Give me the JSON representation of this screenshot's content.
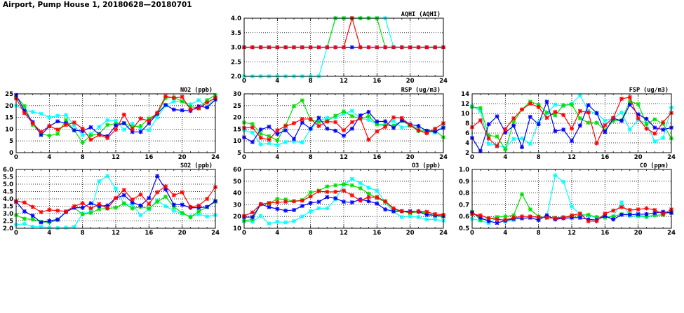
{
  "title": "Airport, Pump House 1, 20180628—20180701",
  "chart_data": {
    "type": "line",
    "x": [
      0,
      1,
      2,
      3,
      4,
      5,
      6,
      7,
      8,
      9,
      10,
      11,
      12,
      13,
      14,
      15,
      16,
      17,
      18,
      19,
      20,
      21,
      22,
      23,
      24
    ],
    "xlim": [
      0,
      24
    ],
    "xticks": [
      0,
      4,
      8,
      12,
      16,
      20,
      24
    ],
    "grid": true,
    "series_colors": [
      "#00ffff",
      "#00e000",
      "#0000ff",
      "#ff0000"
    ],
    "panels": [
      {
        "id": "aqhi",
        "title": "AQHI (AQHI)",
        "ylim": [
          2,
          4
        ],
        "yticks": [
          "2.0",
          "2.5",
          "3.0",
          "3.5",
          "4.0"
        ],
        "series": [
          {
            "color": "#00ffff",
            "values": [
              2,
              2,
              2,
              2,
              2,
              2,
              2,
              2,
              2,
              2,
              3,
              4,
              4,
              4,
              4,
              4,
              4,
              4,
              3,
              3,
              3,
              3,
              3,
              3,
              3
            ]
          },
          {
            "color": "#00e000",
            "values": [
              3,
              3,
              3,
              3,
              3,
              3,
              3,
              3,
              3,
              3,
              3,
              4,
              4,
              4,
              4,
              4,
              4,
              3,
              3,
              3,
              3,
              3,
              3,
              3,
              3
            ]
          },
          {
            "color": "#0000ff",
            "values": [
              3,
              3,
              3,
              3,
              3,
              3,
              3,
              3,
              3,
              3,
              3,
              3,
              3,
              3,
              3,
              3,
              3,
              3,
              3,
              3,
              3,
              3,
              3,
              3,
              3
            ]
          },
          {
            "color": "#ff0000",
            "values": [
              3,
              3,
              3,
              3,
              3,
              3,
              3,
              3,
              3,
              3,
              3,
              3,
              3,
              4,
              3,
              3,
              3,
              3,
              3,
              3,
              3,
              3,
              3,
              3,
              3
            ]
          }
        ]
      },
      {
        "id": "no2",
        "title": "NO2 (ppb)",
        "ylim": [
          0,
          25
        ],
        "yticks": [
          "0",
          "5",
          "10",
          "15",
          "20",
          "25"
        ],
        "series": [
          {
            "color": "#00ffff",
            "values": [
              20,
              18,
              17.3,
              16.5,
              15,
              15.7,
              16,
              11.5,
              7.5,
              8,
              11,
              13.8,
              13.5,
              9.8,
              12.3,
              10,
              9.5,
              15,
              20,
              21.8,
              21.8,
              20.5,
              22.3,
              19.5,
              23.5
            ]
          },
          {
            "color": "#00e000",
            "values": [
              24,
              19.8,
              11.8,
              8,
              7.2,
              8,
              13.8,
              9.5,
              4.3,
              7.3,
              8,
              11.8,
              12.3,
              12.5,
              11,
              11.3,
              14.5,
              16.5,
              23.2,
              23.5,
              21.8,
              19.5,
              19,
              22.3,
              24.5
            ]
          },
          {
            "color": "#0000ff",
            "values": [
              24.5,
              17.8,
              13,
              7.5,
              11.2,
              13.3,
              12.5,
              9.5,
              9.2,
              10.8,
              7.8,
              7,
              11.5,
              12.5,
              8.8,
              8.8,
              12.5,
              16.5,
              20.3,
              18.3,
              18,
              17.8,
              19.7,
              19.2,
              22.5
            ]
          },
          {
            "color": "#ff0000",
            "values": [
              23,
              16.8,
              12.5,
              8.8,
              11.3,
              9.8,
              11.8,
              12.8,
              10.2,
              5.5,
              7.5,
              6.2,
              9.8,
              16.2,
              10,
              14.5,
              13.5,
              17,
              24,
              23.2,
              23.7,
              18.3,
              18.8,
              21.3,
              23.3
            ]
          }
        ]
      },
      {
        "id": "rsp",
        "title": "RSP (ug/m3)",
        "ylim": [
          5,
          30
        ],
        "yticks": [
          "5",
          "10",
          "15",
          "20",
          "25",
          "30"
        ],
        "series": [
          {
            "color": "#00ffff",
            "values": [
              14.5,
              13.5,
              8.5,
              9,
              8.2,
              9.5,
              9.7,
              9.3,
              15,
              18.5,
              19.8,
              20,
              21.5,
              22.8,
              19.5,
              19,
              17,
              17,
              18.5,
              15.7,
              16.5,
              15.5,
              14,
              13.5,
              16.5
            ]
          },
          {
            "color": "#00e000",
            "values": [
              17.8,
              17.2,
              13,
              12,
              10.2,
              16.5,
              24.8,
              27.2,
              19,
              18,
              18.5,
              20.7,
              22.5,
              20.5,
              19.5,
              20.5,
              17,
              16.5,
              16.5,
              18.5,
              16.5,
              14.2,
              14.3,
              14.5,
              11.5
            ]
          },
          {
            "color": "#0000ff",
            "values": [
              11.5,
              9.5,
              14.8,
              16,
              13,
              14.5,
              10.8,
              17.8,
              15.2,
              19.8,
              15.2,
              14.3,
              12.2,
              15.2,
              20.8,
              22.3,
              18.2,
              18.3,
              15.5,
              18.7,
              17,
              16.3,
              14.3,
              14,
              15.5
            ]
          },
          {
            "color": "#ff0000",
            "values": [
              15.5,
              15.7,
              11.3,
              10.5,
              14.5,
              16.3,
              17.5,
              19.3,
              19.3,
              16.3,
              18.2,
              18,
              14.5,
              18,
              19.5,
              10.5,
              14,
              16,
              20,
              19.7,
              16.8,
              14.5,
              13.2,
              15.2,
              17.5
            ]
          }
        ]
      },
      {
        "id": "fsp",
        "title": "FSP (ug/m3)",
        "ylim": [
          2,
          14
        ],
        "yticks": [
          "2",
          "4",
          "6",
          "8",
          "10",
          "12",
          "14"
        ],
        "series": [
          {
            "color": "#00ffff",
            "values": [
              11.5,
              10.5,
              3.8,
              3.5,
              3,
              4.8,
              4.9,
              3.8,
              8.2,
              10,
              11.8,
              11.5,
              12,
              13.7,
              10.5,
              10,
              8.5,
              9,
              10.2,
              6.7,
              8.7,
              8,
              4.3,
              5,
              11.2
            ]
          },
          {
            "color": "#00e000",
            "values": [
              11.3,
              11.1,
              5.5,
              5.3,
              2.6,
              8.3,
              10.8,
              12.4,
              11.8,
              10.2,
              9.6,
              11.7,
              11.8,
              9,
              8.1,
              8.1,
              6.6,
              8.5,
              8.6,
              12.5,
              11.9,
              7.8,
              8.8,
              7.9,
              4.9
            ]
          },
          {
            "color": "#0000ff",
            "values": [
              5,
              2.3,
              7.8,
              9.4,
              6.1,
              7.5,
              3.1,
              9.3,
              7.8,
              12.4,
              6.4,
              6.7,
              4.4,
              7.5,
              11.7,
              10.1,
              6.2,
              9,
              8.5,
              11.8,
              9.8,
              8.9,
              7.1,
              6.7,
              7.1
            ]
          },
          {
            "color": "#ff0000",
            "values": [
              7.2,
              8.6,
              4.9,
              3.3,
              6.8,
              9,
              10.8,
              12,
              11.3,
              9.1,
              10.3,
              9.7,
              6.9,
              10.5,
              10.2,
              3.9,
              7.6,
              9.1,
              13,
              13.3,
              9,
              6.9,
              5.9,
              8.2,
              10.1
            ]
          }
        ]
      },
      {
        "id": "so2",
        "title": "SO2 (ppb)",
        "ylim": [
          2,
          6
        ],
        "yticks": [
          "2.0",
          "2.5",
          "3.0",
          "3.5",
          "4.0",
          "4.5",
          "5.0",
          "5.5",
          "6.0"
        ],
        "series": [
          {
            "color": "#00ffff",
            "values": [
              2.25,
              2.3,
              2.1,
              2.1,
              2.05,
              2.02,
              2.05,
              2.1,
              3,
              3.1,
              5.2,
              5.55,
              4.7,
              3.65,
              3.6,
              2.9,
              3.3,
              3.9,
              3.5,
              3.2,
              3,
              2.8,
              2.95,
              2.8,
              2.9
            ]
          },
          {
            "color": "#00e000",
            "values": [
              2.9,
              2.65,
              2.6,
              2.45,
              2.4,
              2.55,
              3.1,
              3.4,
              2.95,
              3.05,
              3.3,
              3.35,
              3.4,
              3.7,
              3.35,
              3.45,
              3.35,
              3.8,
              4.15,
              3.45,
              3.05,
              2.75,
              3.15,
              3.45,
              3.8
            ]
          },
          {
            "color": "#0000ff",
            "values": [
              3.8,
              3.15,
              2.85,
              2.4,
              2.5,
              2.6,
              3.1,
              3.4,
              3.4,
              3.7,
              3.5,
              3.55,
              4.05,
              4.25,
              3.75,
              3.55,
              4.05,
              5.55,
              4.65,
              3.6,
              3.6,
              3.4,
              3.4,
              3.45,
              3.85
            ]
          },
          {
            "color": "#ff0000",
            "values": [
              3.85,
              3.75,
              3.45,
              3.1,
              3.25,
              3.2,
              3.15,
              3.5,
              3.7,
              3.35,
              3.65,
              3.35,
              4.05,
              4.6,
              3.95,
              4.3,
              3.65,
              4.45,
              4.85,
              4.25,
              4.45,
              3.45,
              3.55,
              4,
              4.8
            ]
          }
        ]
      },
      {
        "id": "o3",
        "title": "O3 (ppb)",
        "ylim": [
          10,
          60
        ],
        "yticks": [
          "10",
          "20",
          "30",
          "40",
          "50",
          "60"
        ],
        "series": [
          {
            "color": "#00ffff",
            "values": [
              16,
              15.5,
              20.5,
              14,
              15.5,
              15,
              16,
              20,
              24.5,
              27,
              27,
              34.5,
              47,
              52,
              48.5,
              44.5,
              42,
              32,
              24,
              19.5,
              20,
              19.5,
              17.5,
              17.5,
              16.5
            ]
          },
          {
            "color": "#00e000",
            "values": [
              16.5,
              17.5,
              30.5,
              31,
              35,
              34.5,
              33,
              34,
              40.5,
              42,
              45.5,
              46.5,
              47.5,
              46.5,
              44,
              39.5,
              35.5,
              32.5,
              26,
              24.5,
              23,
              24,
              23,
              20.5,
              20
            ]
          },
          {
            "color": "#0000ff",
            "values": [
              19.5,
              19.5,
              30.5,
              28,
              26.5,
              25,
              25.5,
              29,
              31.5,
              32.5,
              36.5,
              35.5,
              32.5,
              32,
              34.5,
              33,
              31,
              26,
              24.5,
              24.5,
              24.5,
              24,
              21.5,
              21,
              20.5
            ]
          },
          {
            "color": "#ff0000",
            "values": [
              20.5,
              23.5,
              30.5,
              31.5,
              32,
              32.5,
              33,
              33.5,
              37,
              41.5,
              41,
              41,
              42,
              38,
              33.5,
              36.5,
              36.5,
              33,
              27,
              24.5,
              23.5,
              24.5,
              24,
              22,
              21.5
            ]
          }
        ]
      },
      {
        "id": "co",
        "title": "CO (ppm)",
        "ylim": [
          0.5,
          1.0
        ],
        "yticks": [
          "0.5",
          "0.6",
          "0.7",
          "0.8",
          "0.9",
          "1.0"
        ],
        "series": [
          {
            "color": "#00ffff",
            "values": [
              0.58,
              0.565,
              0.545,
              0.59,
              0.555,
              0.57,
              0.6,
              0.6,
              0.59,
              0.6,
              0.95,
              0.895,
              0.685,
              0.62,
              0.61,
              0.59,
              0.6,
              0.6,
              0.72,
              0.605,
              0.6,
              0.595,
              0.61,
              0.615,
              0.64
            ]
          },
          {
            "color": "#00e000",
            "values": [
              0.64,
              0.57,
              0.58,
              0.595,
              0.6,
              0.61,
              0.79,
              0.66,
              0.6,
              0.59,
              0.59,
              0.595,
              0.6,
              0.61,
              0.615,
              0.595,
              0.59,
              0.6,
              0.62,
              0.62,
              0.61,
              0.6,
              0.61,
              0.615,
              0.64
            ]
          },
          {
            "color": "#0000ff",
            "values": [
              0.635,
              0.59,
              0.56,
              0.545,
              0.565,
              0.58,
              0.585,
              0.59,
              0.57,
              0.61,
              0.575,
              0.585,
              0.59,
              0.59,
              0.575,
              0.57,
              0.605,
              0.575,
              0.615,
              0.615,
              0.62,
              0.62,
              0.63,
              0.64,
              0.63
            ]
          },
          {
            "color": "#ff0000",
            "values": [
              0.62,
              0.61,
              0.585,
              0.575,
              0.57,
              0.59,
              0.6,
              0.6,
              0.595,
              0.59,
              0.585,
              0.59,
              0.61,
              0.625,
              0.56,
              0.56,
              0.625,
              0.65,
              0.68,
              0.655,
              0.66,
              0.67,
              0.655,
              0.62,
              0.66
            ]
          }
        ]
      }
    ]
  }
}
